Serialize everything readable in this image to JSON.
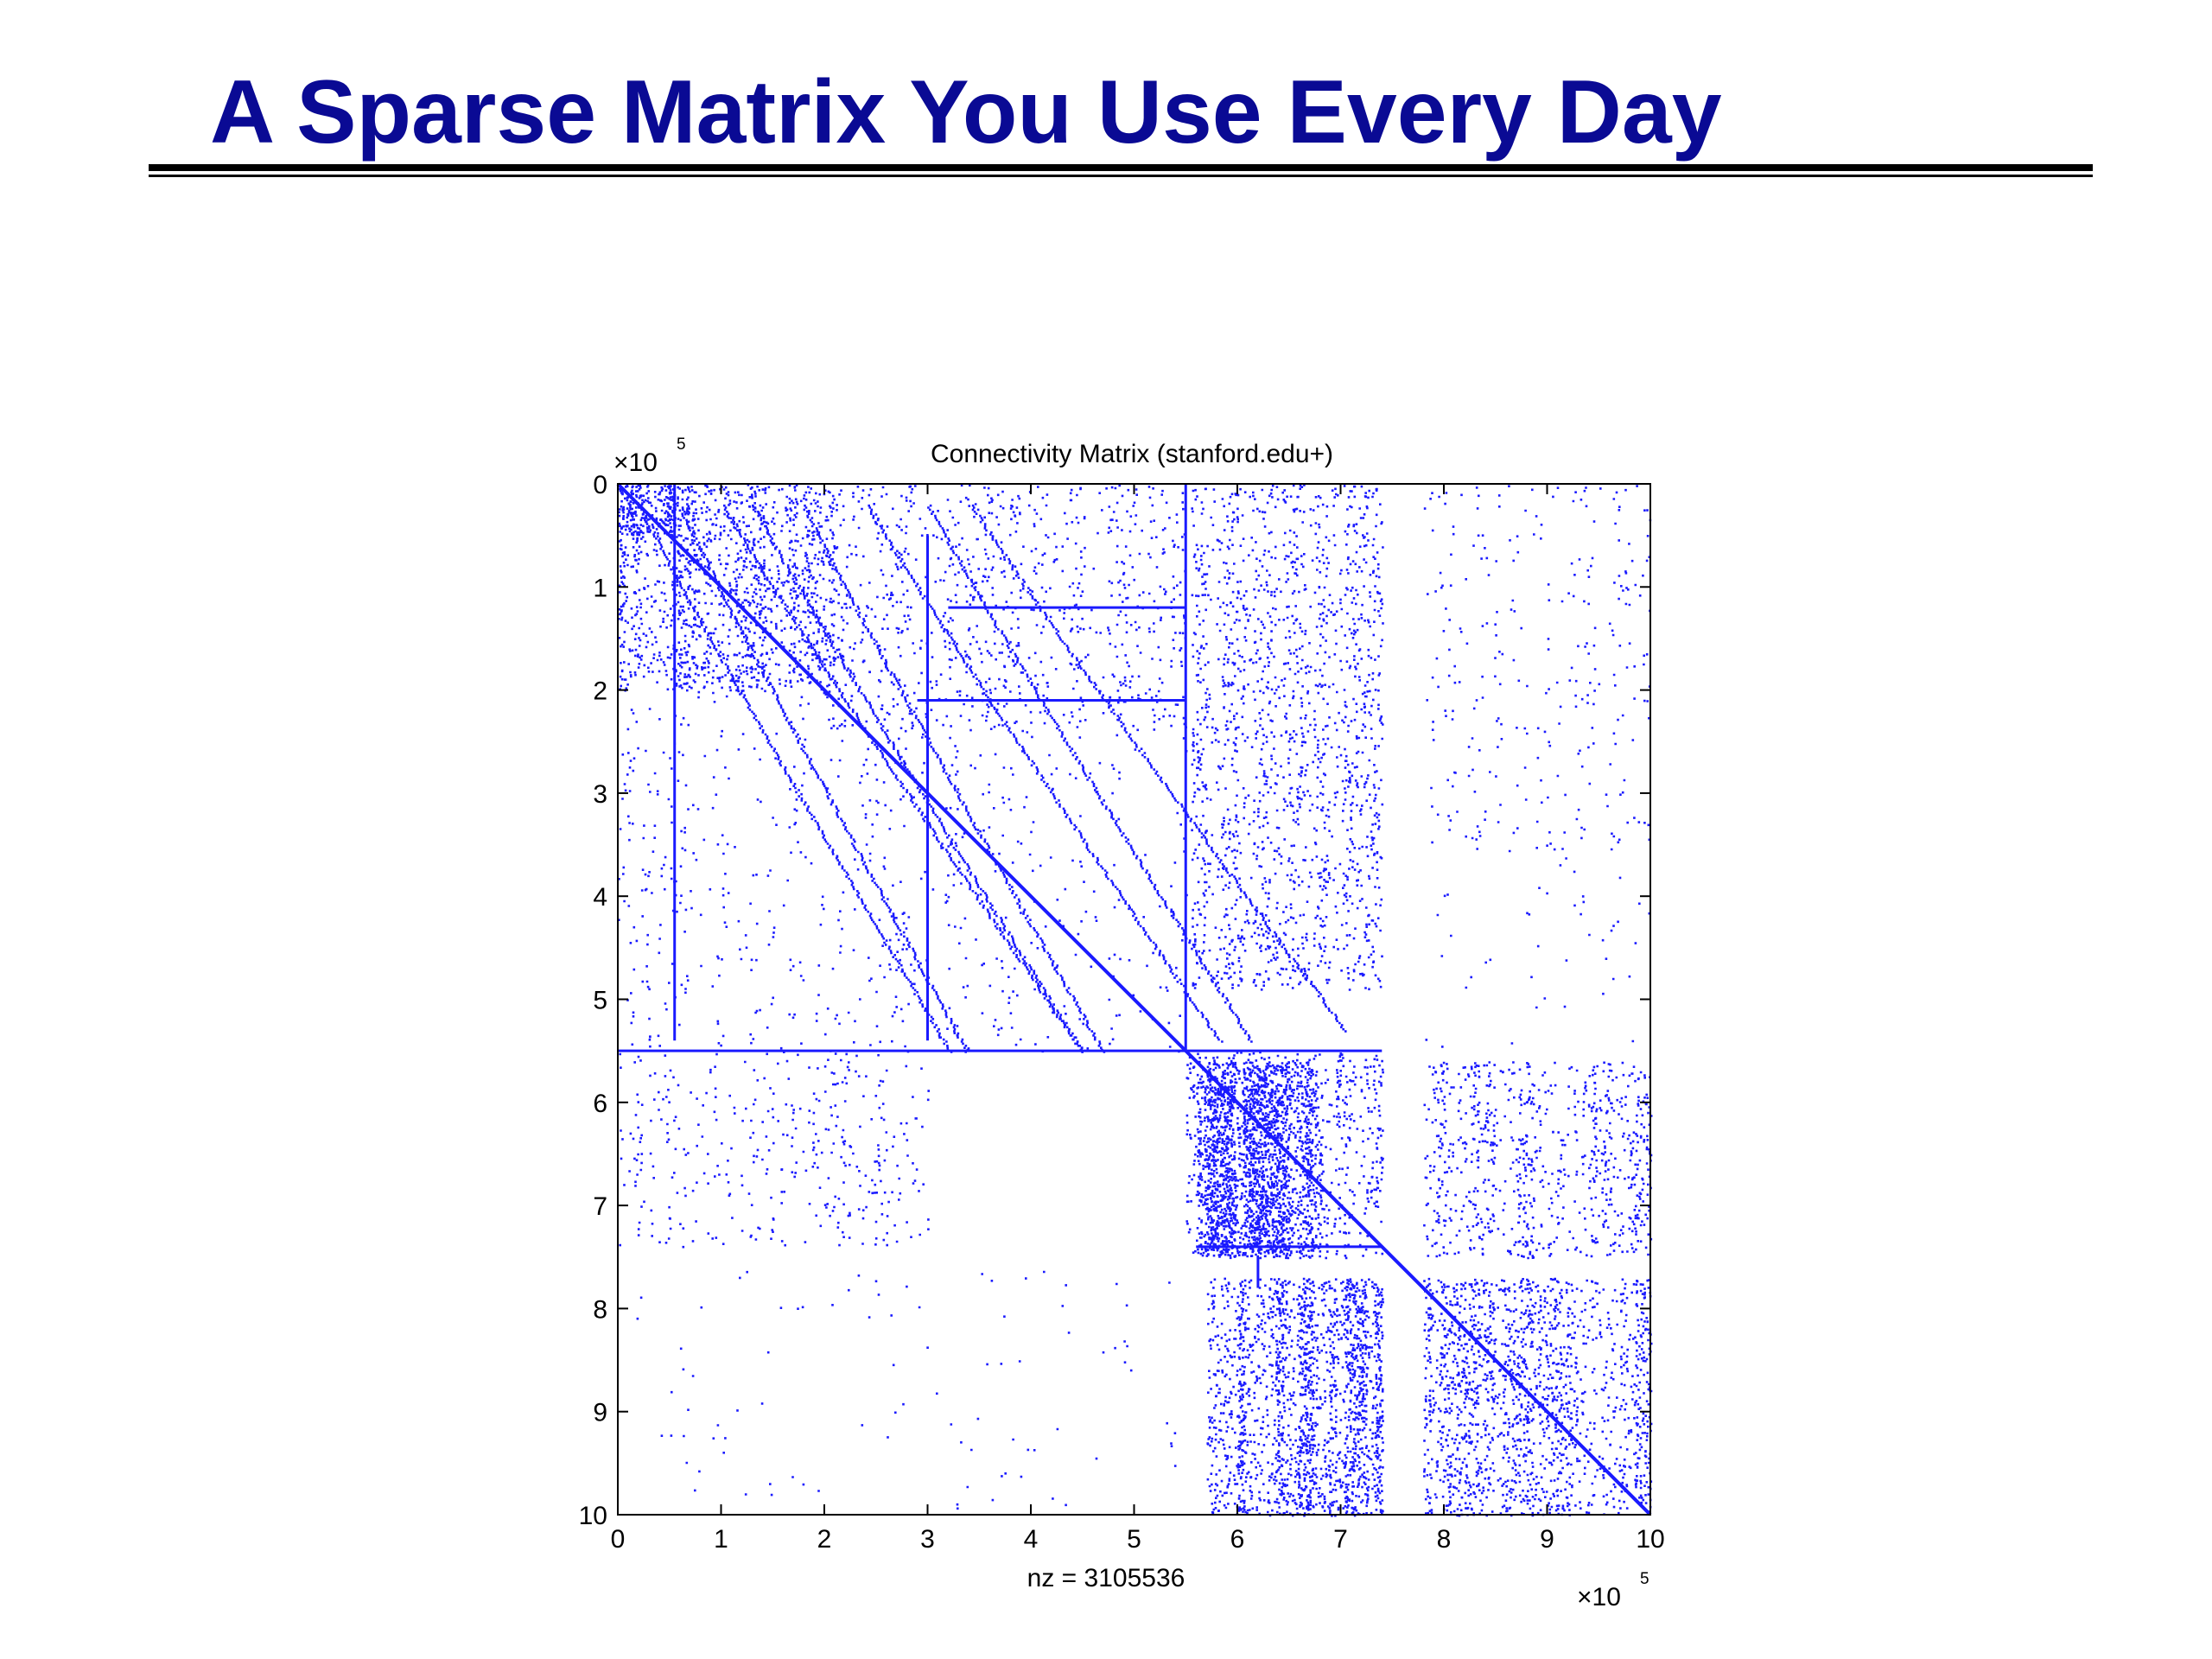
{
  "slide": {
    "title": "A Sparse Matrix You Use Every Day"
  },
  "chart_data": {
    "type": "spy",
    "title": "Connectivity Matrix (stanford.edu+)",
    "xlabel": "nz = 3105536",
    "ylabel": "",
    "x_multiplier": {
      "base": "10",
      "exponent": "5",
      "times": "×"
    },
    "y_multiplier": {
      "base": "10",
      "exponent": "5",
      "times": "×"
    },
    "xlim": [
      0,
      10
    ],
    "ylim": [
      0,
      10
    ],
    "y_reversed": true,
    "xticks": [
      "0",
      "1",
      "2",
      "3",
      "4",
      "5",
      "6",
      "7",
      "8",
      "9",
      "10"
    ],
    "yticks": [
      "0",
      "1",
      "2",
      "3",
      "4",
      "5",
      "6",
      "7",
      "8",
      "9",
      "10"
    ],
    "nz": 3105536,
    "grid": false,
    "color": "#1a1aff",
    "blocks": [
      {
        "x": [
          0.0,
          0.55
        ],
        "y": [
          0.0,
          0.5
        ],
        "density": 0.9
      },
      {
        "x": [
          0.0,
          2.1
        ],
        "y": [
          0.0,
          2.0
        ],
        "density": 0.28
      },
      {
        "x": [
          0.0,
          5.5
        ],
        "y": [
          0.0,
          5.5
        ],
        "density": 0.03
      },
      {
        "x": [
          2.0,
          5.5
        ],
        "y": [
          0.0,
          2.4
        ],
        "density": 0.06
      },
      {
        "x": [
          5.55,
          7.4
        ],
        "y": [
          0.0,
          4.9
        ],
        "density": 0.14
      },
      {
        "x": [
          7.8,
          10.0
        ],
        "y": [
          0.0,
          3.5
        ],
        "density": 0.035
      },
      {
        "x": [
          7.8,
          10.0
        ],
        "y": [
          3.5,
          5.5
        ],
        "density": 0.01
      },
      {
        "x": [
          5.5,
          7.4
        ],
        "y": [
          5.5,
          7.5
        ],
        "density": 0.18
      },
      {
        "x": [
          5.6,
          6.8
        ],
        "y": [
          5.6,
          7.5
        ],
        "density": 0.75
      },
      {
        "x": [
          7.8,
          10.0
        ],
        "y": [
          5.6,
          7.5
        ],
        "density": 0.2
      },
      {
        "x": [
          0.0,
          3.0
        ],
        "y": [
          5.5,
          7.4
        ],
        "density": 0.06
      },
      {
        "x": [
          5.7,
          7.4
        ],
        "y": [
          7.7,
          10.0
        ],
        "density": 0.62
      },
      {
        "x": [
          7.8,
          10.0
        ],
        "y": [
          7.7,
          10.0
        ],
        "density": 0.26
      },
      {
        "x": [
          0.0,
          5.5
        ],
        "y": [
          7.6,
          10.0
        ],
        "density": 0.006
      }
    ],
    "diagonal": {
      "from": [
        0,
        0
      ],
      "to": [
        10,
        10
      ]
    },
    "diagonal_curves": [
      {
        "x0": 0.1,
        "slope": 0.52,
        "y_end": 5.5
      },
      {
        "x0": 0.5,
        "slope": 0.48,
        "y_end": 5.5
      },
      {
        "x0": 0.9,
        "slope": 0.6,
        "y_end": 5.5
      },
      {
        "x0": 1.2,
        "slope": 0.55,
        "y_end": 5.5
      },
      {
        "x0": 1.7,
        "slope": 0.5,
        "y_end": 5.5
      },
      {
        "x0": 2.3,
        "slope": 0.6,
        "y_end": 5.4
      },
      {
        "x0": 2.9,
        "slope": 0.55,
        "y_end": 5.4
      },
      {
        "x0": 3.3,
        "slope": 0.65,
        "y_end": 5.3
      }
    ],
    "vertical_lines": [
      {
        "x": 0.55,
        "y": [
          0.0,
          5.4
        ]
      },
      {
        "x": 5.5,
        "y": [
          0.0,
          5.5
        ]
      },
      {
        "x": 3.0,
        "y": [
          0.5,
          5.4
        ]
      },
      {
        "x": 6.2,
        "y": [
          7.5,
          7.8
        ]
      }
    ],
    "horizontal_lines": [
      {
        "y": 1.2,
        "x": [
          3.2,
          5.5
        ]
      },
      {
        "y": 2.1,
        "x": [
          2.9,
          5.5
        ]
      },
      {
        "y": 5.5,
        "x": [
          0.0,
          7.4
        ]
      },
      {
        "y": 7.4,
        "x": [
          5.6,
          7.4
        ]
      }
    ]
  }
}
